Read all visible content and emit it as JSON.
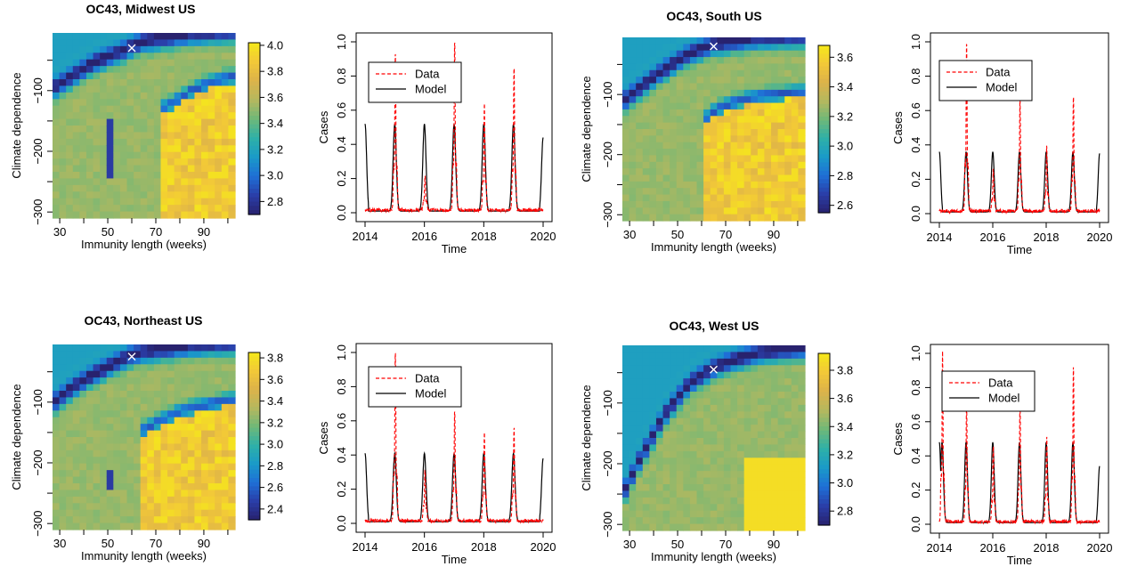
{
  "colors": {
    "heat_scale": [
      "#28226e",
      "#2a3ea8",
      "#1f6fd6",
      "#1a9ac8",
      "#2eb0a8",
      "#6fb878",
      "#b5b85e",
      "#dcb24a",
      "#f2c838",
      "#f5e91a"
    ],
    "data_line": "#ff0000",
    "model_line": "#000000",
    "marker": "#ffffff"
  },
  "legend": {
    "data": "Data",
    "model": "Model"
  },
  "chart_data": [
    {
      "type": "heatmap",
      "title": "OC43, Midwest US",
      "xlabel": "Immunity length (weeks)",
      "ylabel": "Climate dependence",
      "x_ticks": [
        "30",
        "50",
        "70",
        "90"
      ],
      "y_ticks": [
        "−100",
        "−200",
        "−300"
      ],
      "xlim": [
        27,
        103
      ],
      "ylim": [
        -310,
        -5
      ],
      "colorbar_ticks": [
        "4.0",
        "3.8",
        "3.6",
        "3.4",
        "3.2",
        "3.0",
        "2.8"
      ],
      "colorbar_values": [
        4.0,
        3.8,
        3.6,
        3.4,
        3.2,
        3.0,
        2.8
      ],
      "zlim": [
        2.7,
        4.02
      ],
      "best_fit": {
        "x": 60,
        "y": -30
      },
      "upper_ridge": {
        "x": [
          27,
          35,
          45,
          55,
          60,
          65,
          75,
          85,
          95,
          103
        ],
        "y": [
          -100,
          -80,
          -55,
          -40,
          -30,
          -22,
          -15,
          -10,
          -7,
          -5
        ]
      },
      "lower_ridge": {
        "x": [
          72,
          78,
          85,
          92,
          100
        ],
        "y": [
          -130,
          -118,
          -100,
          -88,
          -78
        ]
      },
      "low_strip": {
        "x": [
          50,
          53
        ],
        "y": [
          -250,
          -150
        ]
      }
    },
    {
      "type": "line",
      "xlabel": "Time",
      "ylabel": "Cases",
      "x_ticks": [
        "2014",
        "2016",
        "2018",
        "2020"
      ],
      "y_ticks": [
        "0.0",
        "0.2",
        "0.4",
        "0.6",
        "0.8",
        "1.0"
      ],
      "xlim": [
        2014,
        2020
      ],
      "ylim": [
        0,
        1
      ],
      "peaks": [
        {
          "x": 2015,
          "model": 0.52,
          "data": 0.93
        },
        {
          "x": 2016,
          "model": 0.52,
          "data": 0.2
        },
        {
          "x": 2017,
          "model": 0.52,
          "data": 1.0
        },
        {
          "x": 2018,
          "model": 0.52,
          "data": 0.63
        },
        {
          "x": 2019,
          "model": 0.52,
          "data": 0.85
        }
      ],
      "model_start": 0.52,
      "model_end": 0.44
    },
    {
      "type": "heatmap",
      "title": "OC43, South US",
      "xlabel": "Immunity length (weeks)",
      "ylabel": "Climate dependence",
      "x_ticks": [
        "30",
        "50",
        "70",
        "90"
      ],
      "y_ticks": [
        "−100",
        "−200",
        "−300"
      ],
      "xlim": [
        27,
        103
      ],
      "ylim": [
        -310,
        -5
      ],
      "colorbar_ticks": [
        "3.6",
        "3.4",
        "3.2",
        "3.0",
        "2.8",
        "2.6"
      ],
      "colorbar_values": [
        3.6,
        3.4,
        3.2,
        3.0,
        2.8,
        2.6
      ],
      "zlim": [
        2.55,
        3.68
      ],
      "best_fit": {
        "x": 65,
        "y": -20
      },
      "upper_ridge": {
        "x": [
          27,
          35,
          45,
          55,
          65,
          75,
          85,
          95,
          103
        ],
        "y": [
          -115,
          -90,
          -60,
          -35,
          -20,
          -13,
          -9,
          -7,
          -6
        ]
      },
      "lower_ridge": {
        "x": [
          60,
          66,
          72,
          80,
          90,
          103
        ],
        "y": [
          -145,
          -125,
          -115,
          -105,
          -100,
          -95
        ]
      },
      "low_strip": null
    },
    {
      "type": "line",
      "xlabel": "Time",
      "ylabel": "Cases",
      "x_ticks": [
        "2014",
        "2016",
        "2018",
        "2020"
      ],
      "y_ticks": [
        "0.0",
        "0.2",
        "0.4",
        "0.6",
        "0.8",
        "1.0"
      ],
      "xlim": [
        2014,
        2020
      ],
      "ylim": [
        0,
        1
      ],
      "peaks": [
        {
          "x": 2015,
          "model": 0.36,
          "data": 1.0
        },
        {
          "x": 2016,
          "model": 0.36,
          "data": 0.25
        },
        {
          "x": 2017,
          "model": 0.36,
          "data": 0.66
        },
        {
          "x": 2018,
          "model": 0.36,
          "data": 0.38
        },
        {
          "x": 2019,
          "model": 0.36,
          "data": 0.68
        }
      ],
      "model_start": 0.36,
      "model_end": 0.35
    },
    {
      "type": "heatmap",
      "title": "OC43, Northeast US",
      "xlabel": "Immunity length (weeks)",
      "ylabel": "Climate dependence",
      "x_ticks": [
        "30",
        "50",
        "70",
        "90"
      ],
      "y_ticks": [
        "−100",
        "−200",
        "−300"
      ],
      "xlim": [
        27,
        103
      ],
      "ylim": [
        -310,
        -5
      ],
      "colorbar_ticks": [
        "3.8",
        "3.6",
        "3.4",
        "3.2",
        "3.0",
        "2.8",
        "2.6",
        "2.4"
      ],
      "colorbar_values": [
        3.8,
        3.6,
        3.4,
        3.2,
        3.0,
        2.8,
        2.6,
        2.4
      ],
      "zlim": [
        2.3,
        3.85
      ],
      "best_fit": {
        "x": 60,
        "y": -25
      },
      "upper_ridge": {
        "x": [
          27,
          35,
          45,
          55,
          60,
          70,
          80,
          90,
          103
        ],
        "y": [
          -105,
          -80,
          -55,
          -35,
          -25,
          -17,
          -12,
          -8,
          -6
        ]
      },
      "lower_ridge": {
        "x": [
          65,
          72,
          80,
          90,
          103
        ],
        "y": [
          -145,
          -130,
          -115,
          -105,
          -95
        ]
      },
      "low_strip": {
        "x": [
          50,
          53
        ],
        "y": [
          -245,
          -215
        ]
      }
    },
    {
      "type": "line",
      "xlabel": "Time",
      "ylabel": "Cases",
      "x_ticks": [
        "2014",
        "2016",
        "2018",
        "2020"
      ],
      "y_ticks": [
        "0.0",
        "0.2",
        "0.4",
        "0.6",
        "0.8",
        "1.0"
      ],
      "xlim": [
        2014,
        2020
      ],
      "ylim": [
        0,
        1
      ],
      "peaks": [
        {
          "x": 2015,
          "model": 0.41,
          "data": 1.0
        },
        {
          "x": 2016,
          "model": 0.41,
          "data": 0.3
        },
        {
          "x": 2017,
          "model": 0.41,
          "data": 0.65
        },
        {
          "x": 2018,
          "model": 0.41,
          "data": 0.52
        },
        {
          "x": 2019,
          "model": 0.41,
          "data": 0.55
        }
      ],
      "model_start": 0.41,
      "model_end": 0.38
    },
    {
      "type": "heatmap",
      "title": "OC43, West US",
      "xlabel": "Immunity length (weeks)",
      "ylabel": "Climate dependence",
      "x_ticks": [
        "30",
        "50",
        "70",
        "90"
      ],
      "y_ticks": [
        "−100",
        "−200",
        "−300"
      ],
      "xlim": [
        27,
        103
      ],
      "ylim": [
        -310,
        -5
      ],
      "colorbar_ticks": [
        "3.8",
        "3.6",
        "3.4",
        "3.2",
        "3.0",
        "2.8"
      ],
      "colorbar_values": [
        3.8,
        3.6,
        3.4,
        3.2,
        3.0,
        2.8
      ],
      "zlim": [
        2.7,
        3.92
      ],
      "best_fit": {
        "x": 65,
        "y": -45
      },
      "upper_ridge": {
        "x": [
          27,
          35,
          45,
          55,
          65,
          75,
          85,
          95,
          103
        ],
        "y": [
          -255,
          -190,
          -120,
          -70,
          -45,
          -30,
          -20,
          -15,
          -12
        ]
      },
      "lower_ridge": null,
      "low_strip": null
    },
    {
      "type": "line",
      "xlabel": "Time",
      "ylabel": "Cases",
      "x_ticks": [
        "2014",
        "2016",
        "2018",
        "2020"
      ],
      "y_ticks": [
        "0.0",
        "0.2",
        "0.4",
        "0.6",
        "0.8",
        "1.0"
      ],
      "xlim": [
        2014,
        2020
      ],
      "ylim": [
        0,
        1
      ],
      "peaks": [
        {
          "x": 2014.1,
          "model": 0.48,
          "data": 1.0
        },
        {
          "x": 2015,
          "model": 0.48,
          "data": 0.7
        },
        {
          "x": 2016,
          "model": 0.48,
          "data": 0.45
        },
        {
          "x": 2017,
          "model": 0.48,
          "data": 0.72
        },
        {
          "x": 2018,
          "model": 0.48,
          "data": 0.5
        },
        {
          "x": 2019,
          "model": 0.48,
          "data": 0.92
        }
      ],
      "model_start": 0.48,
      "model_end": 0.34
    }
  ]
}
